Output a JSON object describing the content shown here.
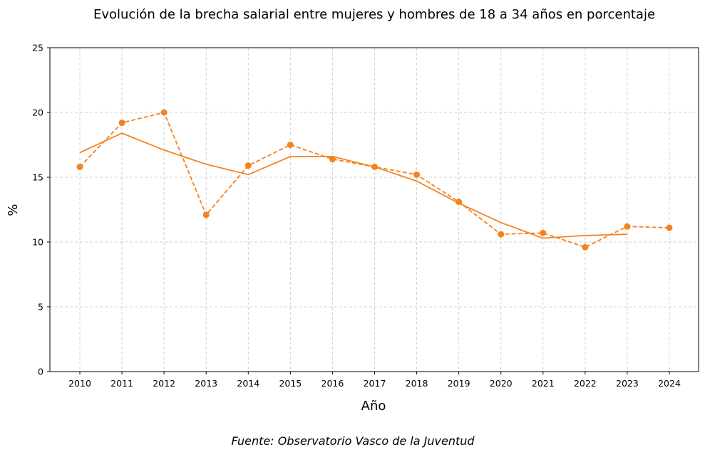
{
  "chart_data": {
    "type": "line",
    "title": "Evolución de la brecha salarial entre mujeres y hombres de 18 a 34 años en porcentaje",
    "xlabel": "Año",
    "ylabel": "%",
    "source": "Fuente: Observatorio Vasco de la Juventud",
    "x": [
      2010,
      2011,
      2012,
      2013,
      2014,
      2015,
      2016,
      2017,
      2018,
      2019,
      2020,
      2021,
      2022,
      2023,
      2024
    ],
    "ylim": [
      0,
      25
    ],
    "yticks": [
      0,
      5,
      10,
      15,
      20,
      25
    ],
    "grid": true,
    "color": "#f5821f",
    "series": [
      {
        "style": "dashed-markers",
        "values": [
          15.8,
          19.2,
          20.0,
          12.1,
          15.9,
          17.5,
          16.4,
          15.8,
          15.2,
          13.1,
          10.6,
          10.7,
          9.6,
          11.2,
          11.1
        ]
      },
      {
        "style": "solid",
        "values": [
          16.9,
          18.4,
          17.1,
          16.0,
          15.2,
          16.6,
          16.6,
          15.8,
          14.7,
          13.0,
          11.5,
          10.3,
          10.5,
          10.6,
          null
        ]
      }
    ]
  }
}
